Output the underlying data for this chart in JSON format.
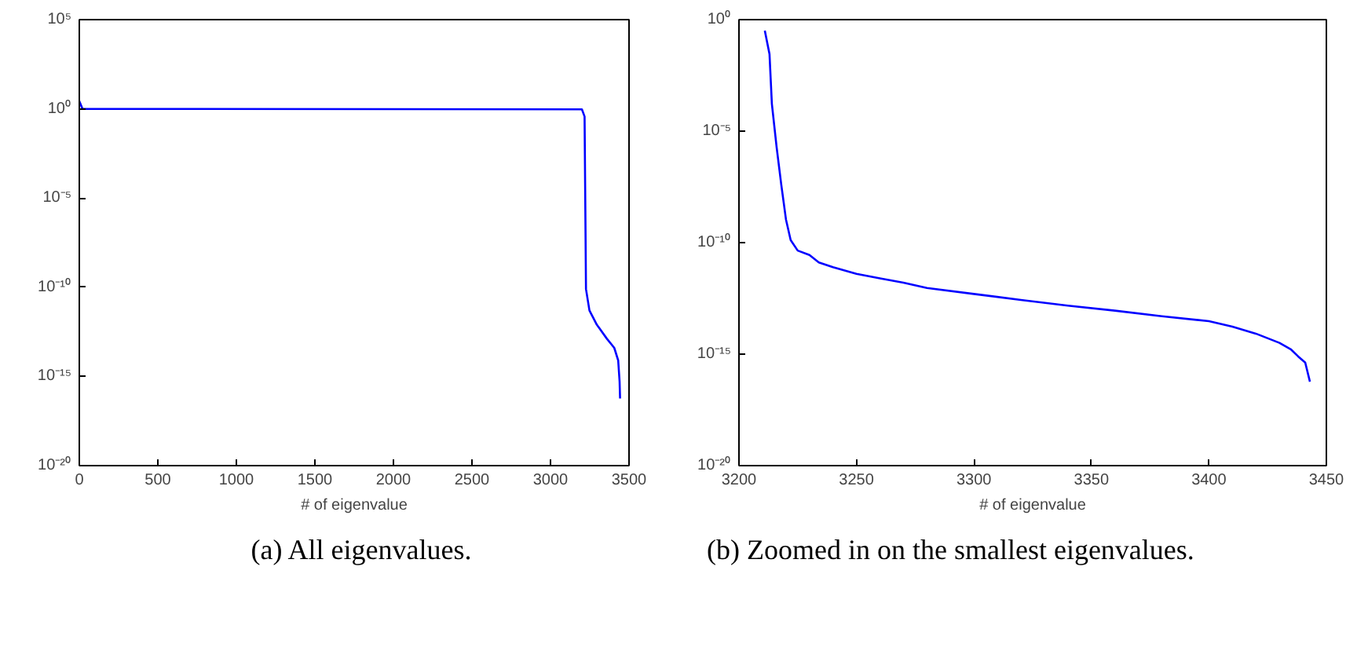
{
  "chart_data": [
    {
      "type": "line",
      "xlabel": "# of eigenvalue",
      "log": "y",
      "grid": false,
      "line_style": "solid",
      "marker": "none",
      "x": [
        0,
        20,
        3200,
        3217,
        3226,
        3248,
        3295,
        3359,
        3406,
        3431,
        3440,
        3443
      ],
      "series": [
        {
          "color": "#0000ff",
          "values": [
            2.7,
            1.0,
            0.93,
            0.37,
            7.9e-11,
            5e-12,
            7.9e-13,
            1.3e-13,
            4e-14,
            7.9e-15,
            5e-16,
            5.8e-17
          ]
        }
      ],
      "xlim": [
        0,
        3500
      ],
      "xticks": [
        0,
        500,
        1000,
        1500,
        2000,
        2500,
        3000,
        3500
      ],
      "ylim": [
        1e-20,
        100000.0
      ],
      "yticks": [
        {
          "value": 1e-20,
          "label": "10⁻²⁰"
        },
        {
          "value": 1e-15,
          "label": "10⁻¹⁵"
        },
        {
          "value": 1e-10,
          "label": "10⁻¹⁰"
        },
        {
          "value": 1e-05,
          "label": "10⁻⁵"
        },
        {
          "value": 1,
          "label": "10⁰"
        },
        {
          "value": 100000.0,
          "label": "10⁵"
        }
      ],
      "annotations": [
        "(a) All eigenvalues."
      ]
    },
    {
      "type": "line",
      "xlabel": "# of eigenvalue",
      "log": "y",
      "grid": false,
      "line_style": "solid",
      "marker": "none",
      "x": [
        3211,
        3213,
        3214,
        3216,
        3218,
        3220,
        3222,
        3225,
        3230,
        3234,
        3240,
        3250,
        3260,
        3270,
        3280,
        3300,
        3320,
        3340,
        3360,
        3380,
        3400,
        3410,
        3420,
        3430,
        3435,
        3438,
        3441,
        3443
      ],
      "series": [
        {
          "color": "#0000ff",
          "values": [
            0.32,
            0.028,
            0.00017,
            2e-06,
            4e-08,
            1.1e-09,
            1.3e-10,
            4.4e-11,
            2.8e-11,
            1.3e-11,
            7.9e-12,
            4e-12,
            2.5e-12,
            1.6e-12,
            9.3e-13,
            5e-13,
            2.7e-13,
            1.5e-13,
            8.9e-14,
            5e-14,
            3e-14,
            1.7e-14,
            8.3e-15,
            3.2e-15,
            1.6e-15,
            7.9e-16,
            4.2e-16,
            5.8e-17
          ]
        }
      ],
      "xlim": [
        3200,
        3450
      ],
      "xticks": [
        3200,
        3250,
        3300,
        3350,
        3400,
        3450
      ],
      "ylim": [
        1e-20,
        1
      ],
      "yticks": [
        {
          "value": 1e-20,
          "label": "10⁻²⁰"
        },
        {
          "value": 1e-15,
          "label": "10⁻¹⁵"
        },
        {
          "value": 1e-10,
          "label": "10⁻¹⁰"
        },
        {
          "value": 1e-05,
          "label": "10⁻⁵"
        },
        {
          "value": 1,
          "label": "10⁰"
        }
      ],
      "annotations": [
        "(b) Zoomed in on the smallest eigenvalues."
      ]
    }
  ]
}
